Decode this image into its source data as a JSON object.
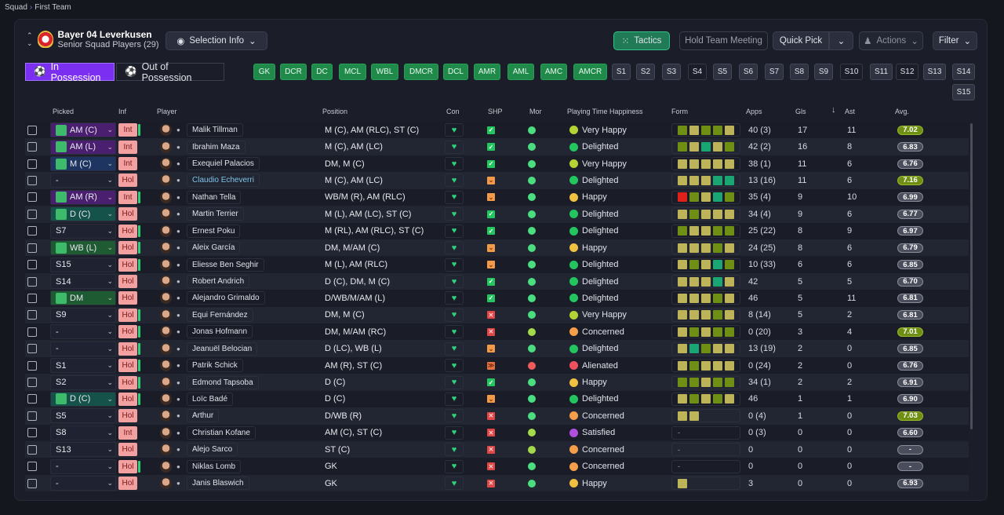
{
  "breadcrumb": {
    "root": "Squad",
    "current": "First Team"
  },
  "club": {
    "name": "Bayer 04 Leverkusen",
    "subtitle": "Senior Squad Players (29)"
  },
  "toolbar": {
    "selection_info": "Selection Info",
    "tactics": "Tactics",
    "hold_meeting": "Hold Team Meeting",
    "quick_pick": "Quick Pick",
    "actions": "Actions",
    "filter": "Filter"
  },
  "tabs": {
    "in_possession": "In Possession",
    "out_possession": "Out of Possession"
  },
  "positions": [
    "GK",
    "DCR",
    "DC",
    "MCL",
    "WBL",
    "DMCR",
    "DCL",
    "AMR",
    "AML",
    "AMC",
    "AMCR"
  ],
  "subs": [
    "S1",
    "S2",
    "S3",
    "S4",
    "S5",
    "S6",
    "S7",
    "S8",
    "S9",
    "S10",
    "S11",
    "S12",
    "S13",
    "S14",
    "S15"
  ],
  "columns": {
    "picked": "Picked",
    "inf": "Inf",
    "player": "Player",
    "position": "Position",
    "con": "Con",
    "shp": "SHP",
    "mor": "Mor",
    "pth": "Playing Time Happiness",
    "form": "Form",
    "apps": "Apps",
    "gls": "Gls",
    "ast": "Ast",
    "avg": "Avg."
  },
  "colors": {
    "accent": "#7b2ff0",
    "tactics": "#1f8a5a",
    "very_happy": "#b5d334",
    "delighted": "#22c55e",
    "happy": "#f0c040",
    "concerned": "#f59e4a",
    "alienated": "#ef5060",
    "satisfied": "#b050e0"
  },
  "players": [
    {
      "picked": "AM (C)",
      "pc": "purple",
      "inf": "Int",
      "bar": true,
      "name": "Malik Tillman",
      "pos": "M (C), AM (RLC), ST (C)",
      "shp": "c",
      "mor": "g",
      "pth": "Very Happy",
      "form": "okook",
      "apps": "40 (3)",
      "gls": "17",
      "ast": "11",
      "avg": "7.02"
    },
    {
      "picked": "AM (L)",
      "pc": "purple",
      "inf": "Int",
      "bar": false,
      "name": "Ibrahim Maza",
      "pos": "M (C), AM (LC)",
      "shp": "c",
      "mor": "g",
      "pth": "Delighted",
      "form": "okgko",
      "apps": "42 (2)",
      "gls": "16",
      "ast": "8",
      "avg": "6.83"
    },
    {
      "picked": "M (C)",
      "pc": "blue",
      "inf": "Int",
      "bar": false,
      "name": "Exequiel Palacios",
      "pos": "DM, M (C)",
      "shp": "c",
      "mor": "g",
      "pth": "Very Happy",
      "form": "kkkkk",
      "apps": "38 (1)",
      "gls": "11",
      "ast": "6",
      "avg": "6.76"
    },
    {
      "picked": "-",
      "pc": "",
      "inf": "Hol",
      "bar": false,
      "name": "Claudio Echeverri",
      "link": true,
      "pos": "M (C), AM (LC)",
      "shp": "d",
      "mor": "g",
      "pth": "Delighted",
      "form": "kkkgg",
      "apps": "13 (16)",
      "gls": "11",
      "ast": "6",
      "avg": "7.16"
    },
    {
      "picked": "AM (R)",
      "pc": "purple",
      "inf": "Int",
      "bar": true,
      "name": "Nathan Tella",
      "pos": "WB/M (R), AM (RLC)",
      "shp": "d",
      "mor": "g",
      "pth": "Happy",
      "form": "rokgo",
      "apps": "35 (4)",
      "gls": "9",
      "ast": "10",
      "avg": "6.99"
    },
    {
      "picked": "D (C)",
      "pc": "teal",
      "inf": "Hol",
      "bar": false,
      "name": "Martin Terrier",
      "pos": "M (L), AM (LC), ST (C)",
      "shp": "c",
      "mor": "g",
      "pth": "Delighted",
      "form": "kokkk",
      "apps": "34 (4)",
      "gls": "9",
      "ast": "6",
      "avg": "6.77"
    },
    {
      "picked": "S7",
      "pc": "",
      "inf": "Hol",
      "bar": true,
      "name": "Ernest Poku",
      "pos": "M (RL), AM (RLC), ST (C)",
      "shp": "c",
      "mor": "g",
      "pth": "Delighted",
      "form": "okkoo",
      "apps": "25 (22)",
      "gls": "8",
      "ast": "9",
      "avg": "6.97"
    },
    {
      "picked": "WB (L)",
      "pc": "green",
      "inf": "Hol",
      "bar": true,
      "name": "Aleix García",
      "pos": "DM, M/AM (C)",
      "shp": "d",
      "mor": "g",
      "pth": "Happy",
      "form": "kkkok",
      "apps": "24 (25)",
      "gls": "8",
      "ast": "6",
      "avg": "6.79"
    },
    {
      "picked": "S15",
      "pc": "",
      "inf": "Hol",
      "bar": true,
      "name": "Eliesse Ben Seghir",
      "pos": "M (L), AM (RLC)",
      "shp": "d",
      "mor": "g",
      "pth": "Delighted",
      "form": "kokgo",
      "apps": "10 (33)",
      "gls": "6",
      "ast": "6",
      "avg": "6.85"
    },
    {
      "picked": "S14",
      "pc": "",
      "inf": "Hol",
      "bar": false,
      "name": "Robert Andrich",
      "pos": "D (C), DM, M (C)",
      "shp": "c",
      "mor": "g",
      "pth": "Delighted",
      "form": "kkkgk",
      "apps": "42",
      "gls": "5",
      "ast": "5",
      "avg": "6.70"
    },
    {
      "picked": "DM",
      "pc": "green",
      "inf": "Hol",
      "bar": false,
      "name": "Alejandro Grimaldo",
      "pos": "D/WB/M/AM (L)",
      "shp": "c",
      "mor": "g",
      "pth": "Delighted",
      "form": "kkkok",
      "apps": "46",
      "gls": "5",
      "ast": "11",
      "avg": "6.81"
    },
    {
      "picked": "S9",
      "pc": "",
      "inf": "Hol",
      "bar": true,
      "name": "Equi Fernández",
      "pos": "DM, M (C)",
      "shp": "x",
      "mor": "g",
      "pth": "Very Happy",
      "form": "kkkok",
      "apps": "8 (14)",
      "gls": "5",
      "ast": "2",
      "avg": "6.81"
    },
    {
      "picked": "-",
      "pc": "",
      "inf": "Hol",
      "bar": true,
      "name": "Jonas Hofmann",
      "pos": "DM, M/AM (RC)",
      "shp": "x",
      "mor": "lime",
      "pth": "Concerned",
      "form": "kokoo",
      "apps": "0 (20)",
      "gls": "3",
      "ast": "4",
      "avg": "7.01"
    },
    {
      "picked": "-",
      "pc": "",
      "inf": "Hol",
      "bar": true,
      "name": "Jeanuël Belocian",
      "pos": "D (LC), WB (L)",
      "shp": "d",
      "mor": "g",
      "pth": "Delighted",
      "form": "kgokk",
      "apps": "13 (19)",
      "gls": "2",
      "ast": "0",
      "avg": "6.85"
    },
    {
      "picked": "S1",
      "pc": "",
      "inf": "Hol",
      "bar": true,
      "name": "Patrik Schick",
      "pos": "AM (R), ST (C)",
      "shp": "dd",
      "mor": "red",
      "pth": "Alienated",
      "form": "kokkk",
      "apps": "0 (24)",
      "gls": "2",
      "ast": "0",
      "avg": "6.76"
    },
    {
      "picked": "S2",
      "pc": "",
      "inf": "Hol",
      "bar": true,
      "name": "Edmond Tapsoba",
      "pos": "D (C)",
      "shp": "c",
      "mor": "g",
      "pth": "Happy",
      "form": "ookoo",
      "apps": "34 (1)",
      "gls": "2",
      "ast": "2",
      "avg": "6.91"
    },
    {
      "picked": "D (C)",
      "pc": "teal",
      "inf": "Hol",
      "bar": true,
      "name": "Loïc Badé",
      "pos": "D (C)",
      "shp": "d",
      "mor": "g",
      "pth": "Delighted",
      "form": "kokok",
      "apps": "46",
      "gls": "1",
      "ast": "1",
      "avg": "6.90"
    },
    {
      "picked": "S5",
      "pc": "",
      "inf": "Hol",
      "bar": false,
      "name": "Arthur",
      "pos": "D/WB (R)",
      "shp": "x",
      "mor": "g",
      "pth": "Concerned",
      "form": "kk",
      "apps": "0 (4)",
      "gls": "1",
      "ast": "0",
      "avg": "7.03"
    },
    {
      "picked": "S8",
      "pc": "",
      "inf": "Int",
      "bar": false,
      "name": "Christian Kofane",
      "pos": "AM (C), ST (C)",
      "shp": "x",
      "mor": "lime",
      "pth": "Satisfied",
      "form": "-",
      "apps": "0 (3)",
      "gls": "0",
      "ast": "0",
      "avg": "6.60"
    },
    {
      "picked": "S13",
      "pc": "",
      "inf": "Hol",
      "bar": false,
      "name": "Alejo Sarco",
      "pos": "ST (C)",
      "shp": "x",
      "mor": "lime",
      "pth": "Concerned",
      "form": "-",
      "apps": "0",
      "gls": "0",
      "ast": "0",
      "avg": "-"
    },
    {
      "picked": "-",
      "pc": "",
      "inf": "Hol",
      "bar": true,
      "name": "Niklas Lomb",
      "pos": "GK",
      "shp": "x",
      "mor": "g",
      "pth": "Concerned",
      "form": "-",
      "apps": "0",
      "gls": "0",
      "ast": "0",
      "avg": "-"
    },
    {
      "picked": "-",
      "pc": "",
      "inf": "Hol",
      "bar": false,
      "name": "Janis Blaswich",
      "pos": "GK",
      "shp": "x",
      "mor": "g",
      "pth": "Happy",
      "form": "k",
      "apps": "3",
      "gls": "0",
      "ast": "0",
      "avg": "6.93"
    }
  ]
}
